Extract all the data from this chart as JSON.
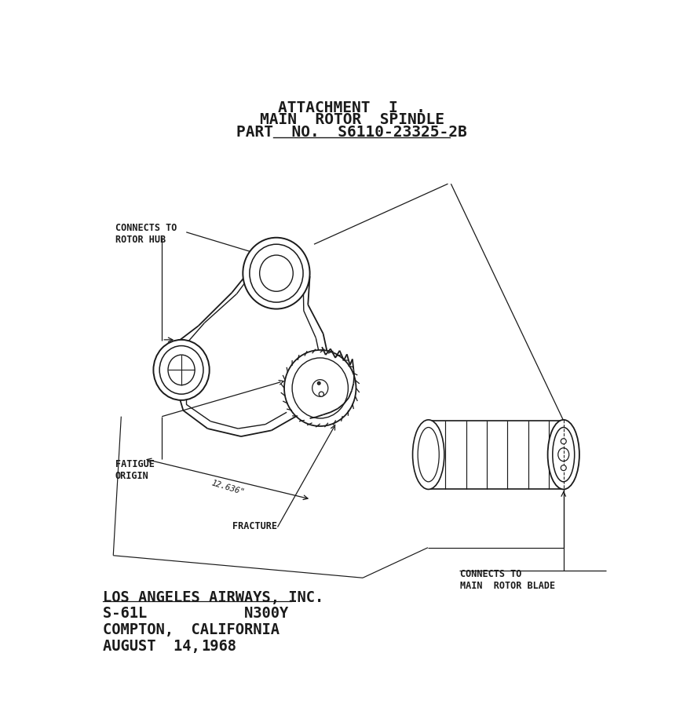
{
  "title_lines": [
    "ATTACHMENT  I  .",
    "MAIN  ROTOR  SPINDLE",
    "PART  NO.  S6110-23325-2B"
  ],
  "title_fontsize": 14,
  "line_color": "#1a1a1a",
  "label_connects_hub": "CONNECTS TO\nROTOR HUB",
  "label_fatigue": "FATIGUE\nORIGIN",
  "label_fracture": "FRACTURE",
  "label_dimension": "12.636\"",
  "label_connects_blade": "CONNECTS TO\nMAIN  ROTOR BLADE",
  "footer_line1": "LOS ANGELES AIRWAYS, INC.",
  "footer_line2": "S-61L           N300Y",
  "footer_line3": "COMPTON,  CALIFORNIA",
  "footer_line4": "AUGUST  14, ",
  "footer_year": "1968",
  "footer_fontsize": 13.5,
  "annot_fontsize": 8.5
}
